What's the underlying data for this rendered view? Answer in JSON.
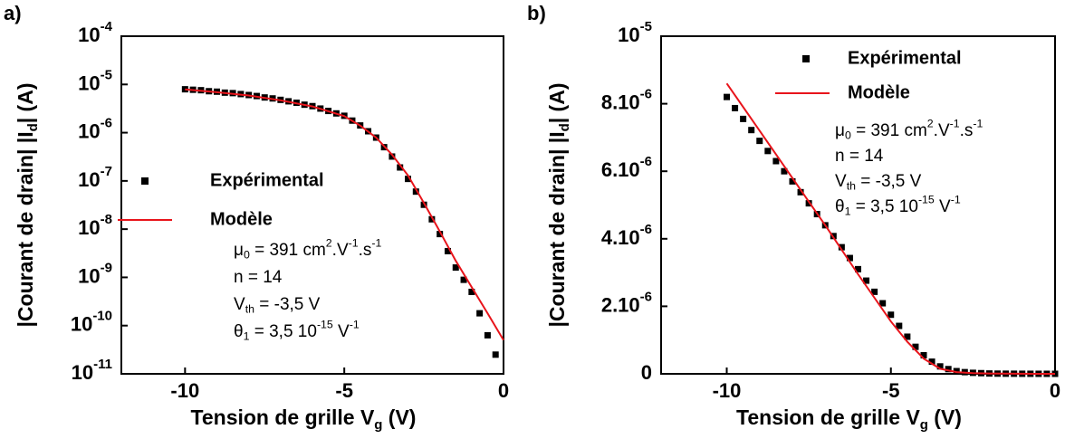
{
  "chart_data": [
    {
      "type": "scatter",
      "label": "a)",
      "log_y": true,
      "legend": "center-left",
      "xlabel": [
        {
          "text": "Tension de grille V"
        },
        {
          "sub": "g"
        },
        {
          "text": " (V)"
        }
      ],
      "ylabel": [
        {
          "text": "|Courant de drain| |I"
        },
        {
          "sub": "d"
        },
        {
          "text": "| (A)"
        }
      ],
      "xlim": [
        -12,
        0
      ],
      "xticks": [
        -10,
        -5,
        0
      ],
      "ylim": [
        1e-11,
        0.0001
      ],
      "yticks": [
        {
          "value": 1e-11,
          "label": "10",
          "sup": "-11"
        },
        {
          "value": 1e-10,
          "label": "10",
          "sup": "-10"
        },
        {
          "value": 1e-09,
          "label": "10",
          "sup": "-9"
        },
        {
          "value": 1e-08,
          "label": "10",
          "sup": "-8"
        },
        {
          "value": 1e-07,
          "label": "10",
          "sup": "-7"
        },
        {
          "value": 1e-06,
          "label": "10",
          "sup": "-6"
        },
        {
          "value": 1e-05,
          "label": "10",
          "sup": "-5"
        },
        {
          "value": 0.0001,
          "label": "10",
          "sup": "-4"
        }
      ],
      "series": [
        {
          "name": "Expérimental",
          "type": "scatter",
          "color": "#000000",
          "x": [
            -10,
            -9.75,
            -9.5,
            -9.25,
            -9,
            -8.75,
            -8.5,
            -8.25,
            -8,
            -7.75,
            -7.5,
            -7.25,
            -7,
            -6.75,
            -6.5,
            -6.25,
            -6,
            -5.75,
            -5.5,
            -5.25,
            -5,
            -4.75,
            -4.5,
            -4.25,
            -4,
            -3.75,
            -3.5,
            -3.25,
            -3,
            -2.75,
            -2.5,
            -2.25,
            -2,
            -1.75,
            -1.5,
            -1.25,
            -1,
            -0.75,
            -0.5,
            -0.25
          ],
          "values": [
            7.94e-06,
            7.76e-06,
            7.59e-06,
            7.24e-06,
            7.08e-06,
            6.76e-06,
            6.61e-06,
            6.31e-06,
            6.03e-06,
            5.75e-06,
            5.37e-06,
            5.13e-06,
            4.79e-06,
            4.47e-06,
            4.17e-06,
            3.8e-06,
            3.55e-06,
            3.16e-06,
            2.82e-06,
            2.51e-06,
            2.24e-06,
            1.78e-06,
            1.41e-06,
            1.07e-06,
            7.9e-07,
            5e-07,
            3.2e-07,
            1.9e-07,
            1.1e-07,
            6e-08,
            3.2e-08,
            1.6e-08,
            7.9e-09,
            3.5e-09,
            1.6e-09,
            8.9e-10,
            5e-10,
            1.8e-10,
            6.3e-11,
            2.5e-11
          ]
        },
        {
          "name": "Modèle",
          "type": "line",
          "color": "#e8141b",
          "x": [
            -10,
            -9,
            -8,
            -7,
            -6,
            -5,
            -4.5,
            -4,
            -3.5,
            -3,
            -2.5,
            -2,
            -1.5,
            -1,
            -0.5,
            0
          ],
          "values": [
            7.9e-06,
            6.9e-06,
            5.9e-06,
            4.7e-06,
            3.5e-06,
            2.2e-06,
            1.4e-06,
            7.9e-07,
            3.5e-07,
            1.3e-07,
            3.5e-08,
            8.9e-09,
            2.2e-09,
            6.3e-10,
            1.8e-10,
            5e-11
          ]
        }
      ],
      "annotations": [
        [
          {
            "text": "μ"
          },
          {
            "sub": "0"
          },
          {
            "text": " = 391 cm"
          },
          {
            "sup": "2"
          },
          {
            "text": ".V"
          },
          {
            "sup": "-1"
          },
          {
            "text": ".s"
          },
          {
            "sup": "-1"
          }
        ],
        [
          {
            "text": "n = 14"
          }
        ],
        [
          {
            "text": "V"
          },
          {
            "sub": "th"
          },
          {
            "text": " = -3,5 V"
          }
        ],
        [
          {
            "text": "θ"
          },
          {
            "sub": "1"
          },
          {
            "text": " = 3,5 10"
          },
          {
            "sup": "-15"
          },
          {
            "text": " V"
          },
          {
            "sup": "-1"
          }
        ]
      ]
    },
    {
      "type": "scatter",
      "label": "b)",
      "log_y": false,
      "legend": "upper-right",
      "xlabel": [
        {
          "text": "Tension de grille V"
        },
        {
          "sub": "g"
        },
        {
          "text": " (V)"
        }
      ],
      "ylabel": [
        {
          "text": "|Courant de drain| |I"
        },
        {
          "sub": "d"
        },
        {
          "text": "| (A)"
        }
      ],
      "xlim": [
        -12,
        0
      ],
      "xticks": [
        -10,
        -5,
        0
      ],
      "ylim": [
        0,
        1e-05
      ],
      "yticks": [
        0,
        {
          "value": 2e-06,
          "label": "2.10",
          "sup": "-6"
        },
        {
          "value": 4e-06,
          "label": "4.10",
          "sup": "-6"
        },
        {
          "value": 6e-06,
          "label": "6.10",
          "sup": "-6"
        },
        {
          "value": 8e-06,
          "label": "8.10",
          "sup": "-6"
        },
        {
          "value": 1e-05,
          "label": "10",
          "sup": "-5"
        }
      ],
      "series": [
        {
          "name": "Expérimental",
          "type": "scatter",
          "color": "#000000",
          "x": [
            -10,
            -9.75,
            -9.5,
            -9.25,
            -9,
            -8.75,
            -8.5,
            -8.25,
            -8,
            -7.75,
            -7.5,
            -7.25,
            -7,
            -6.75,
            -6.5,
            -6.25,
            -6,
            -5.75,
            -5.5,
            -5.25,
            -5,
            -4.75,
            -4.5,
            -4.25,
            -4,
            -3.75,
            -3.5,
            -3.25,
            -3,
            -2.75,
            -2.5,
            -2.25,
            -2,
            -1.75,
            -1.5,
            -1.25,
            -1,
            -0.75,
            -0.5,
            -0.25,
            0
          ],
          "values": [
            8.2e-06,
            7.87e-06,
            7.55e-06,
            7.22e-06,
            6.9e-06,
            6.6e-06,
            6.3e-06,
            6e-06,
            5.7e-06,
            5.38e-06,
            5.05e-06,
            4.73e-06,
            4.4e-06,
            4.08e-06,
            3.75e-06,
            3.43e-06,
            3.1e-06,
            2.76e-06,
            2.43e-06,
            2.09e-06,
            1.75e-06,
            1.42e-06,
            1.1e-06,
            8e-07,
            5.5e-07,
            3.6e-07,
            2.2e-07,
            1.4e-07,
            8e-08,
            5e-08,
            3e-08,
            2e-08,
            1e-08,
            6e-09,
            4e-09,
            3e-09,
            2e-09,
            1.5e-09,
            1e-09,
            8e-10,
            5e-10
          ]
        },
        {
          "name": "Modèle",
          "type": "line",
          "color": "#e8141b",
          "x": [
            -10,
            -9,
            -8,
            -7,
            -6,
            -5,
            -4.5,
            -4,
            -3.5,
            -3,
            -2.5,
            -2,
            -1,
            0
          ],
          "values": [
            8.6e-06,
            7.2e-06,
            5.8e-06,
            4.4e-06,
            2.95e-06,
            1.55e-06,
            9.5e-07,
            4.5e-07,
            1.5e-07,
            5e-08,
            2e-08,
            1e-08,
            2e-09,
            5e-10
          ]
        }
      ],
      "annotations": [
        [
          {
            "text": "μ"
          },
          {
            "sub": "0"
          },
          {
            "text": " = 391 cm"
          },
          {
            "sup": "2"
          },
          {
            "text": ".V"
          },
          {
            "sup": "-1"
          },
          {
            "text": ".s"
          },
          {
            "sup": "-1"
          }
        ],
        [
          {
            "text": "n = 14"
          }
        ],
        [
          {
            "text": "V"
          },
          {
            "sub": "th"
          },
          {
            "text": " = -3,5 V"
          }
        ],
        [
          {
            "text": "θ"
          },
          {
            "sub": "1"
          },
          {
            "text": " = 3,5 10"
          },
          {
            "sup": "-15"
          },
          {
            "text": " V"
          },
          {
            "sup": "-1"
          }
        ]
      ]
    }
  ]
}
